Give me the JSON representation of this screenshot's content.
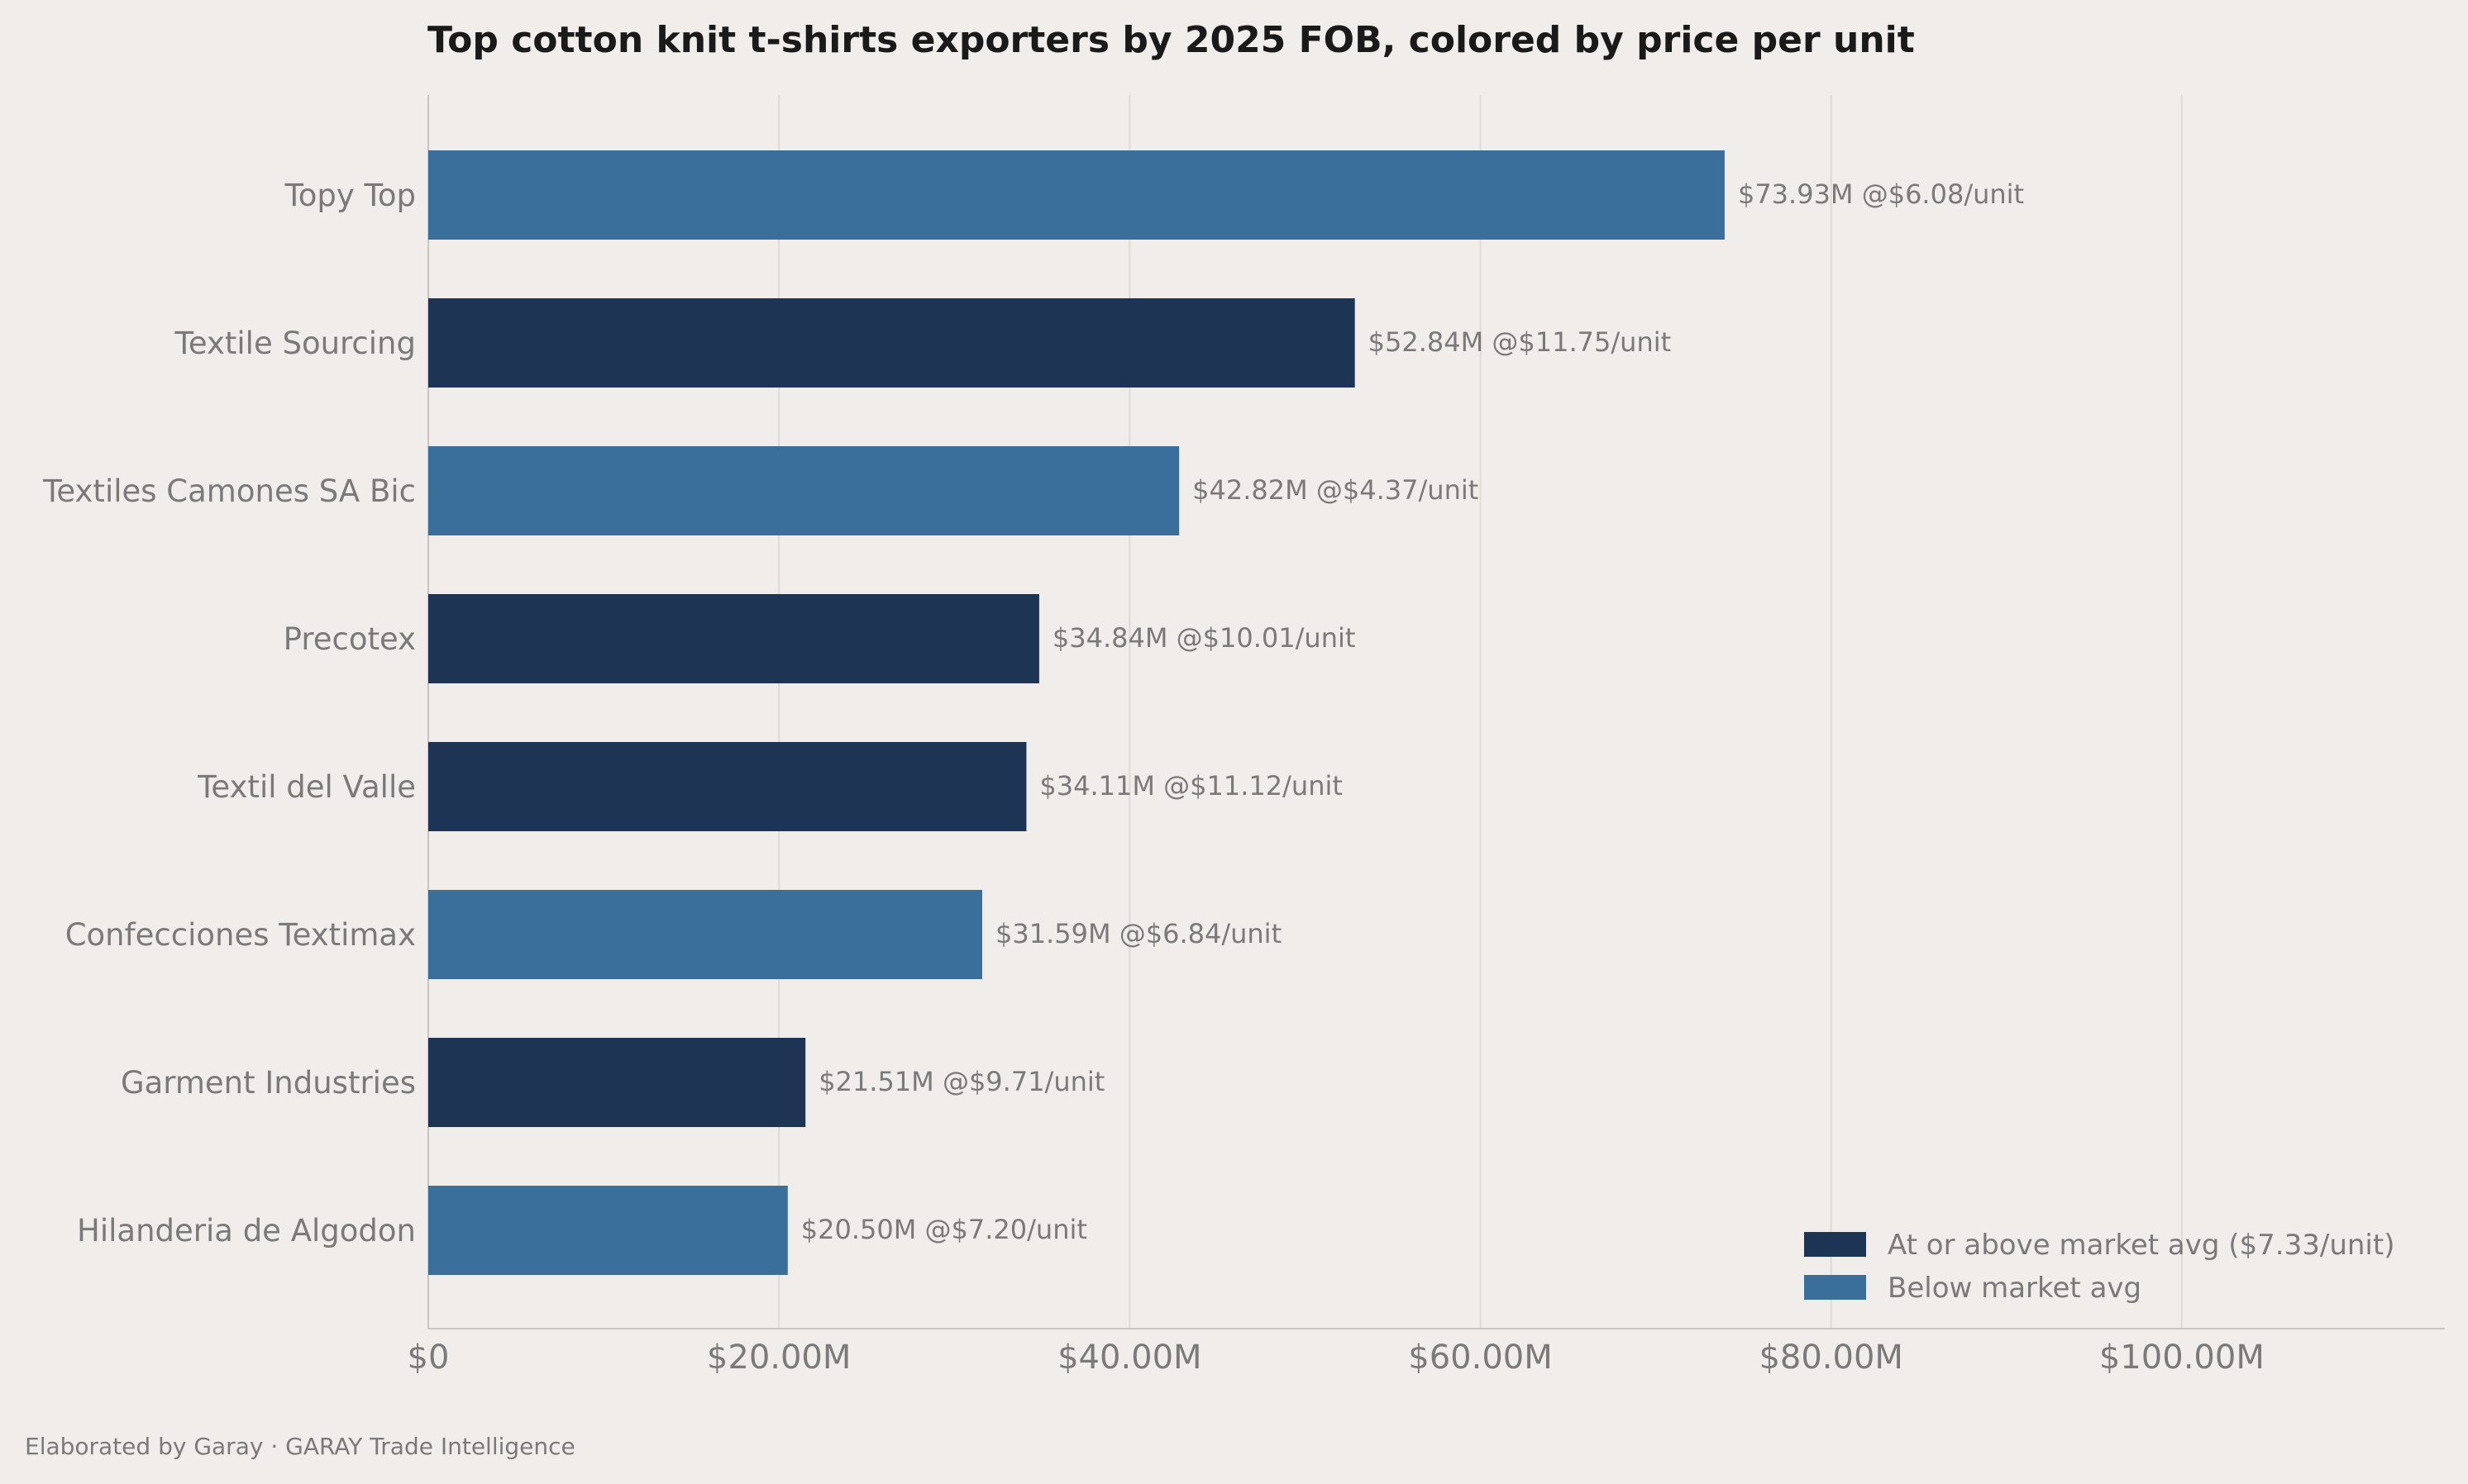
{
  "chart_data": {
    "type": "bar",
    "orientation": "horizontal",
    "title": "Top cotton knit t-shirts exporters by 2025 FOB, colored by price per unit",
    "xlabel": "",
    "ylabel": "",
    "xlim": [
      0,
      115
    ],
    "x_ticks": [
      0,
      20,
      40,
      60,
      80,
      100
    ],
    "x_tick_labels": [
      "$0",
      "$20.00M",
      "$40.00M",
      "$60.00M",
      "$80.00M",
      "$100.00M"
    ],
    "grid": "vertical",
    "legend_position": "bottom-right",
    "categories": [
      "Topy Top",
      "Textile Sourcing",
      "Textiles Camones SA Bic",
      "Precotex",
      "Textil del Valle",
      "Confecciones Textimax",
      "Garment Industries",
      "Hilanderia de Algodon"
    ],
    "values": [
      73.93,
      52.84,
      42.82,
      34.84,
      34.11,
      31.59,
      21.51,
      20.5
    ],
    "price_per_unit": [
      6.08,
      11.75,
      4.37,
      10.01,
      11.12,
      6.84,
      9.71,
      7.2
    ],
    "market_avg_price": 7.33,
    "groups": [
      "below",
      "above",
      "below",
      "above",
      "above",
      "below",
      "above",
      "below"
    ],
    "value_labels": [
      "$73.93M  @$6.08/unit",
      "$52.84M  @$11.75/unit",
      "$42.82M  @$4.37/unit",
      "$34.84M  @$10.01/unit",
      "$34.11M  @$11.12/unit",
      "$31.59M  @$6.84/unit",
      "$21.51M  @$9.71/unit",
      "$20.50M  @$7.20/unit"
    ],
    "legend": [
      {
        "key": "above",
        "label": "At or above market avg ($7.33/unit)",
        "color": "#1d3455"
      },
      {
        "key": "below",
        "label": "Below market avg",
        "color": "#3a6f9c"
      }
    ]
  },
  "footer": "Elaborated by Garay  ·  GARAY Trade Intelligence",
  "colors": {
    "background": "#f1edea",
    "grid": "#dedad6",
    "axis": "#c9c5c1",
    "text": "#7a7a7a",
    "title": "#1a1a1a"
  }
}
